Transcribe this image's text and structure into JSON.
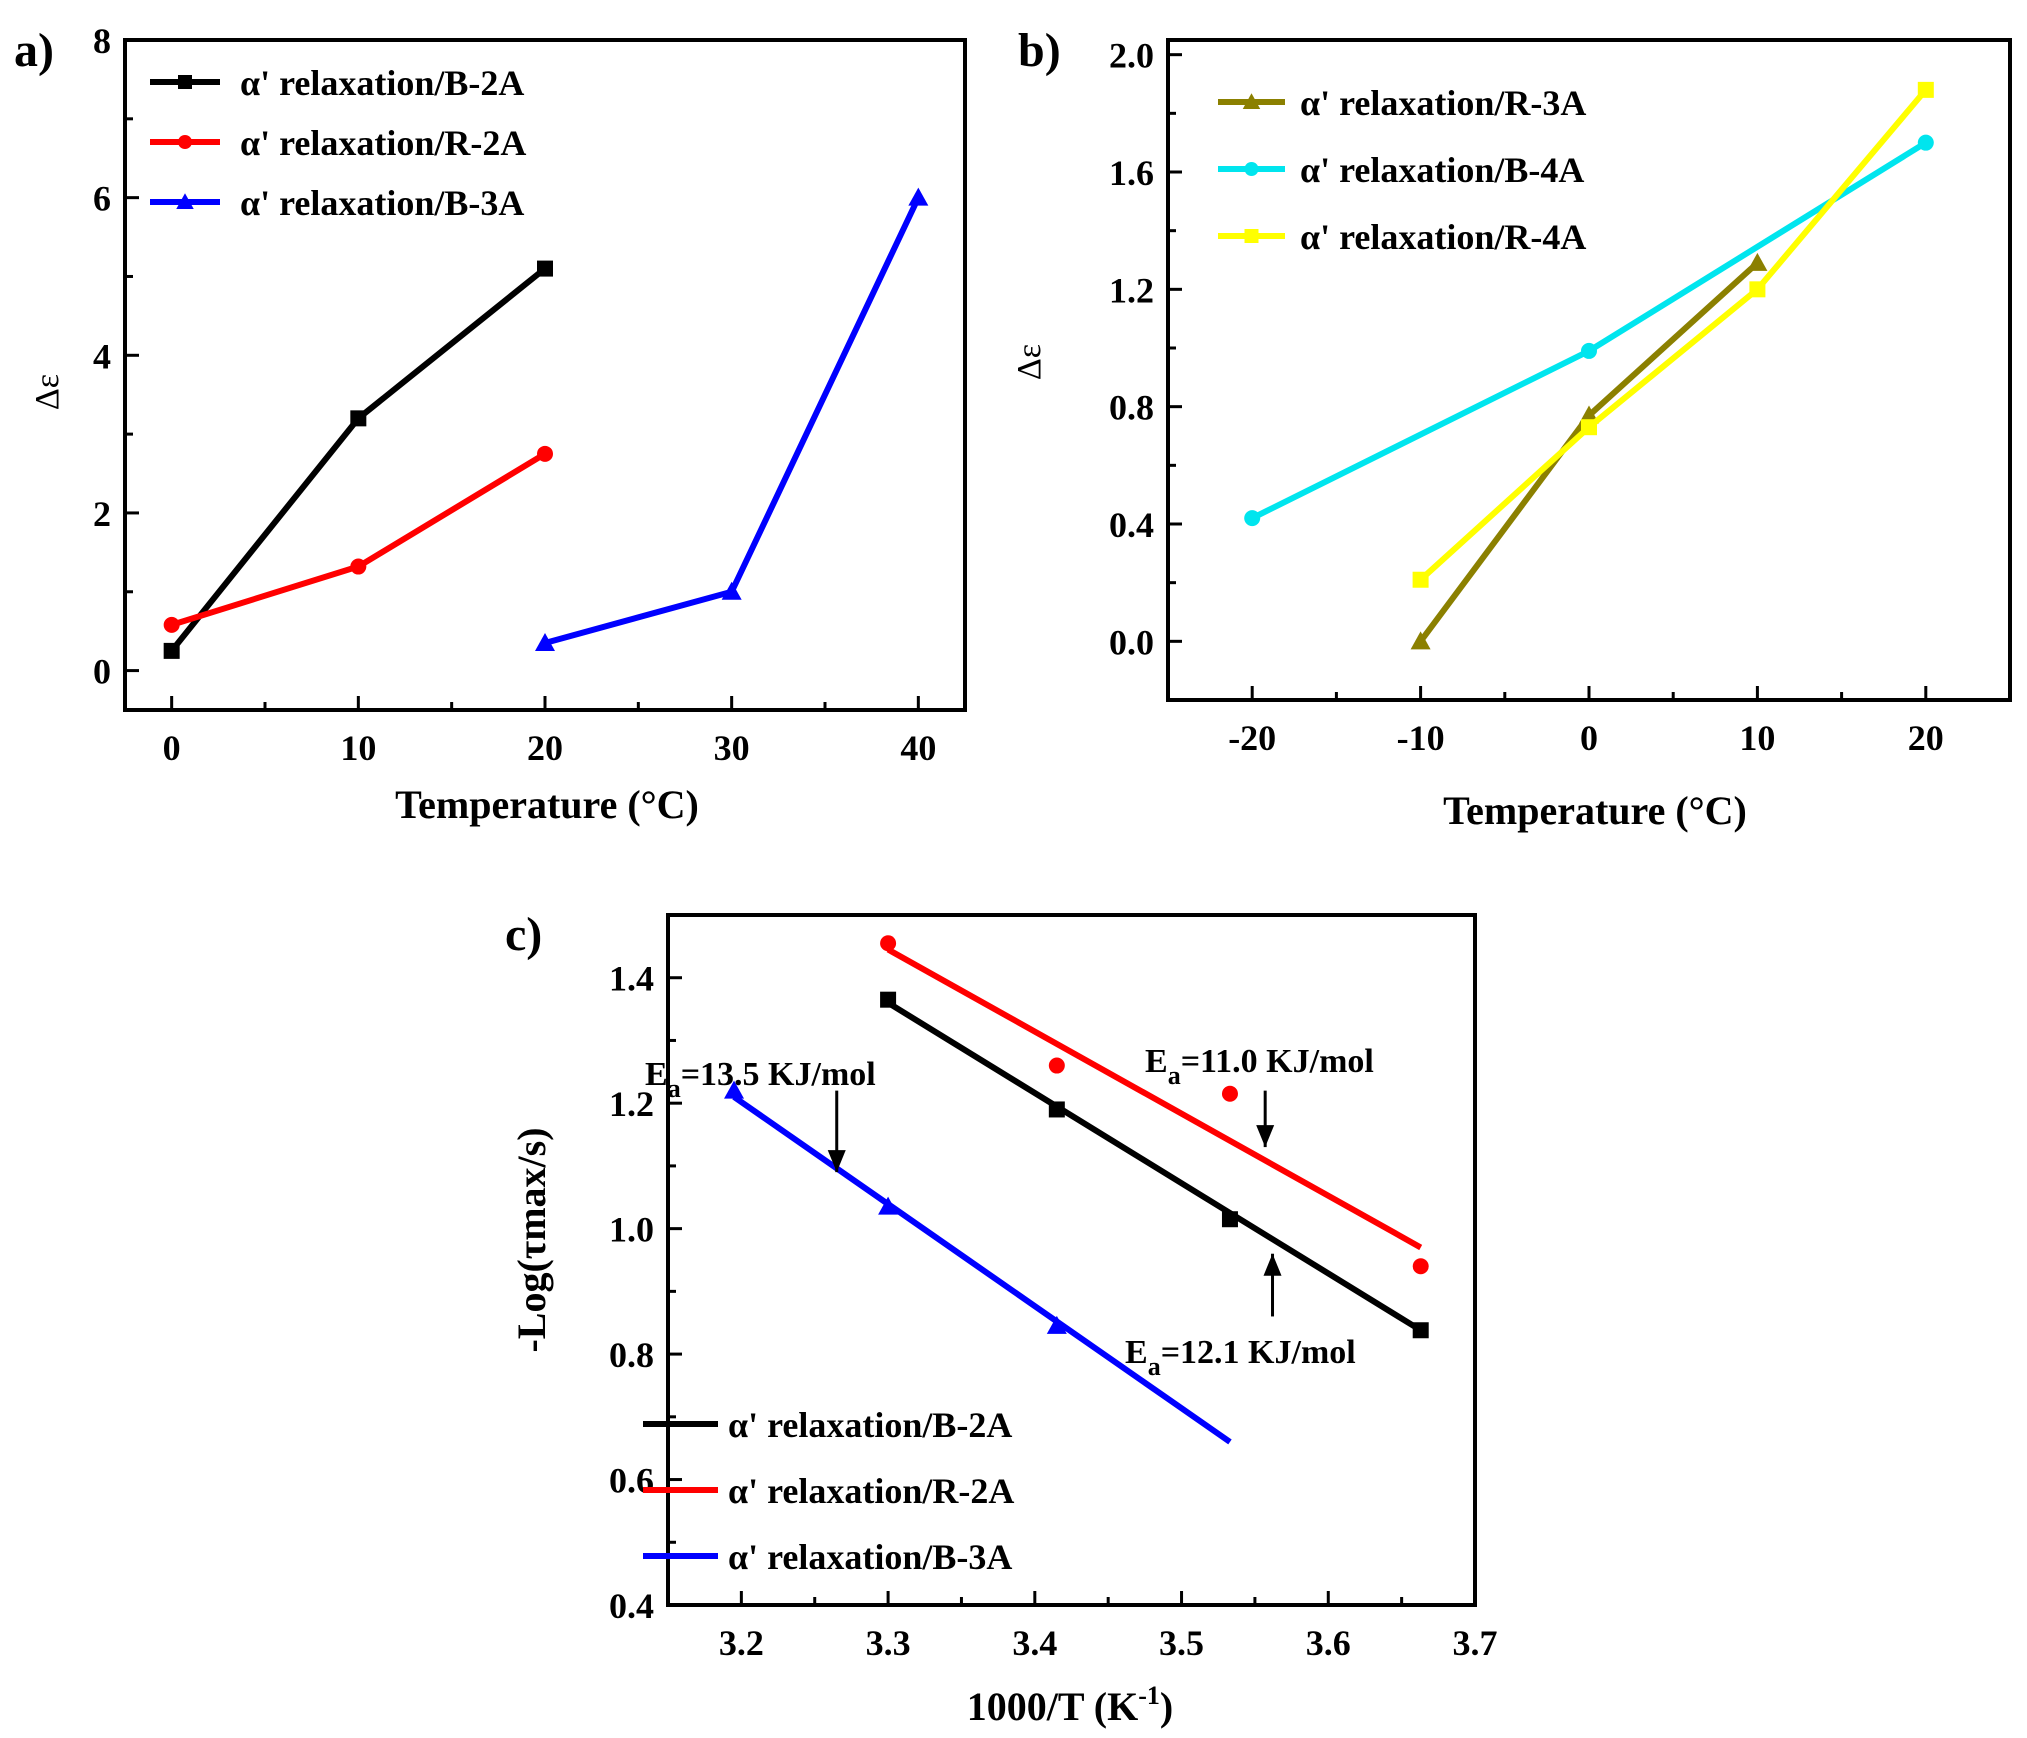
{
  "figure": {
    "panel_labels": [
      "a)",
      "b)",
      "c)"
    ]
  },
  "chart_data": [
    {
      "id": "a",
      "type": "line",
      "panel_label": "a)",
      "xlabel": "Temperature (°C)",
      "ylabel": "Δε",
      "xlim": [
        -2.5,
        42.5
      ],
      "ylim": [
        -0.5,
        8
      ],
      "xticks": [
        0,
        10,
        20,
        30,
        40
      ],
      "yticks": [
        0,
        2,
        4,
        6,
        8
      ],
      "legend_position": "top-left",
      "series": [
        {
          "name": "α' relaxation/B-2A",
          "color": "#000000",
          "marker": "square",
          "x": [
            0,
            10,
            20
          ],
          "y": [
            0.25,
            3.2,
            5.1
          ]
        },
        {
          "name": "α' relaxation/R-2A",
          "color": "#ff0000",
          "marker": "circle",
          "x": [
            0,
            10,
            20
          ],
          "y": [
            0.58,
            1.32,
            2.75
          ]
        },
        {
          "name": "α' relaxation/B-3A",
          "color": "#0000ff",
          "marker": "triangle",
          "x": [
            20,
            30,
            40
          ],
          "y": [
            0.35,
            1.0,
            6.0
          ]
        }
      ]
    },
    {
      "id": "b",
      "type": "line",
      "panel_label": "b)",
      "xlabel": "Temperature (°C)",
      "ylabel": "Δε",
      "xlim": [
        -25,
        25
      ],
      "ylim": [
        -0.2,
        2.05
      ],
      "xticks": [
        -20,
        -10,
        0,
        10,
        20
      ],
      "ytick_labels": [
        "0.0",
        "0.4",
        "0.8",
        "1.2",
        "1.6",
        "2.0"
      ],
      "yticks": [
        0,
        0.4,
        0.8,
        1.2,
        1.6,
        2.0
      ],
      "legend_position": "top-left",
      "series": [
        {
          "name": "α' relaxation/R-3A",
          "color": "#8b8000",
          "marker": "triangle",
          "x": [
            -10,
            0,
            10
          ],
          "y": [
            0.0,
            0.77,
            1.29
          ]
        },
        {
          "name": "α' relaxation/B-4A",
          "color": "#00e5ee",
          "marker": "circle",
          "x": [
            -20,
            0,
            20
          ],
          "y": [
            0.42,
            0.99,
            1.7
          ]
        },
        {
          "name": "α' relaxation/R-4A",
          "color": "#ffff00",
          "marker": "square",
          "x": [
            -10,
            0,
            10,
            20
          ],
          "y": [
            0.21,
            0.73,
            1.2,
            1.88
          ]
        }
      ]
    },
    {
      "id": "c",
      "type": "scatter",
      "panel_label": "c)",
      "xlabel": "1000/T (K",
      "xlabel_sup": "-1",
      "xlabel_end": ")",
      "ylabel": "-Log(τmax/s)",
      "xlim": [
        3.15,
        3.7
      ],
      "ylim": [
        0.4,
        1.5
      ],
      "xtick_labels": [
        "3.2",
        "3.3",
        "3.4",
        "3.5",
        "3.6",
        "3.7"
      ],
      "xticks": [
        3.2,
        3.3,
        3.4,
        3.5,
        3.6,
        3.7
      ],
      "ytick_labels": [
        "0.4",
        "0.6",
        "0.8",
        "1.0",
        "1.2",
        "1.4"
      ],
      "yticks": [
        0.4,
        0.6,
        0.8,
        1.0,
        1.2,
        1.4
      ],
      "legend_position": "bottom-left",
      "series": [
        {
          "name": "α' relaxation/B-2A",
          "color": "#000000",
          "marker": "square",
          "x": [
            3.3,
            3.415,
            3.533,
            3.663
          ],
          "y": [
            1.365,
            1.19,
            1.015,
            0.838
          ],
          "fit": {
            "x": [
              3.3,
              3.663
            ],
            "y": [
              1.36,
              0.838
            ]
          }
        },
        {
          "name": "α' relaxation/R-2A",
          "color": "#ff0000",
          "marker": "circle",
          "x": [
            3.3,
            3.415,
            3.533,
            3.663
          ],
          "y": [
            1.455,
            1.26,
            1.215,
            0.94
          ],
          "fit": {
            "x": [
              3.3,
              3.663
            ],
            "y": [
              1.445,
              0.97
            ]
          }
        },
        {
          "name": "α' relaxation/B-3A",
          "color": "#0000ff",
          "marker": "triangle",
          "x": [
            3.195,
            3.3,
            3.415
          ],
          "y": [
            1.22,
            1.035,
            0.845
          ],
          "fit": {
            "x": [
              3.195,
              3.533
            ],
            "y": [
              1.21,
              0.66
            ]
          }
        }
      ],
      "annotations": [
        {
          "label": "E",
          "sub": "a",
          "text": "=13.5 KJ/mol",
          "arrow_x": 3.265,
          "arrow_from_y": 1.22,
          "arrow_to_y": 1.09
        },
        {
          "label": "E",
          "sub": "a",
          "text": "=11.0 KJ/mol",
          "arrow_x": 3.557,
          "arrow_from_y": 1.22,
          "arrow_to_y": 1.13
        },
        {
          "label": "E",
          "sub": "a",
          "text": "=12.1 KJ/mol",
          "arrow_x": 3.562,
          "arrow_from_y": 0.86,
          "arrow_to_y": 0.96
        }
      ]
    }
  ]
}
